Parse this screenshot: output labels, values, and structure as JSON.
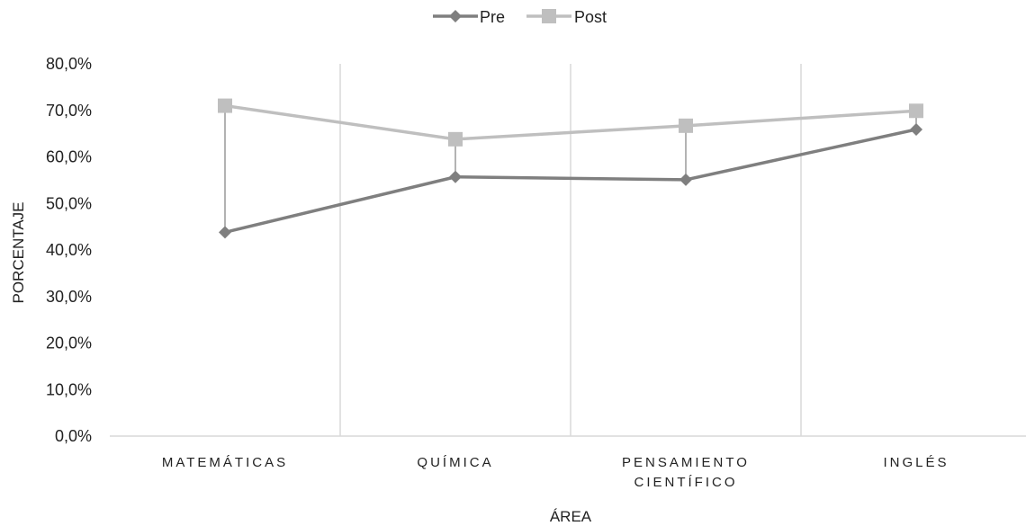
{
  "chart_data": {
    "type": "line",
    "categories": [
      [
        "MATEMÁTICAS"
      ],
      [
        "QUÍMICA"
      ],
      [
        "PENSAMIENTO",
        "CIENTÍFICO"
      ],
      [
        "INGLÉS"
      ]
    ],
    "series": [
      {
        "name": "Pre",
        "values": [
          0.438,
          0.557,
          0.551,
          0.659
        ],
        "color": "#7f7f7f",
        "marker": "diamond"
      },
      {
        "name": "Post",
        "values": [
          0.71,
          0.638,
          0.667,
          0.699
        ],
        "color": "#bfbfbf",
        "marker": "square"
      }
    ],
    "high_low_lines": true,
    "xlabel": "ÁREA",
    "ylabel": "PORCENTAJE",
    "ylim": [
      0,
      0.8
    ],
    "yticks": [
      "0,0%",
      "10,0%",
      "20,0%",
      "30,0%",
      "40,0%",
      "50,0%",
      "60,0%",
      "70,0%",
      "80,0%"
    ],
    "grid": "vertical category separators",
    "legend_position": "top-center"
  }
}
